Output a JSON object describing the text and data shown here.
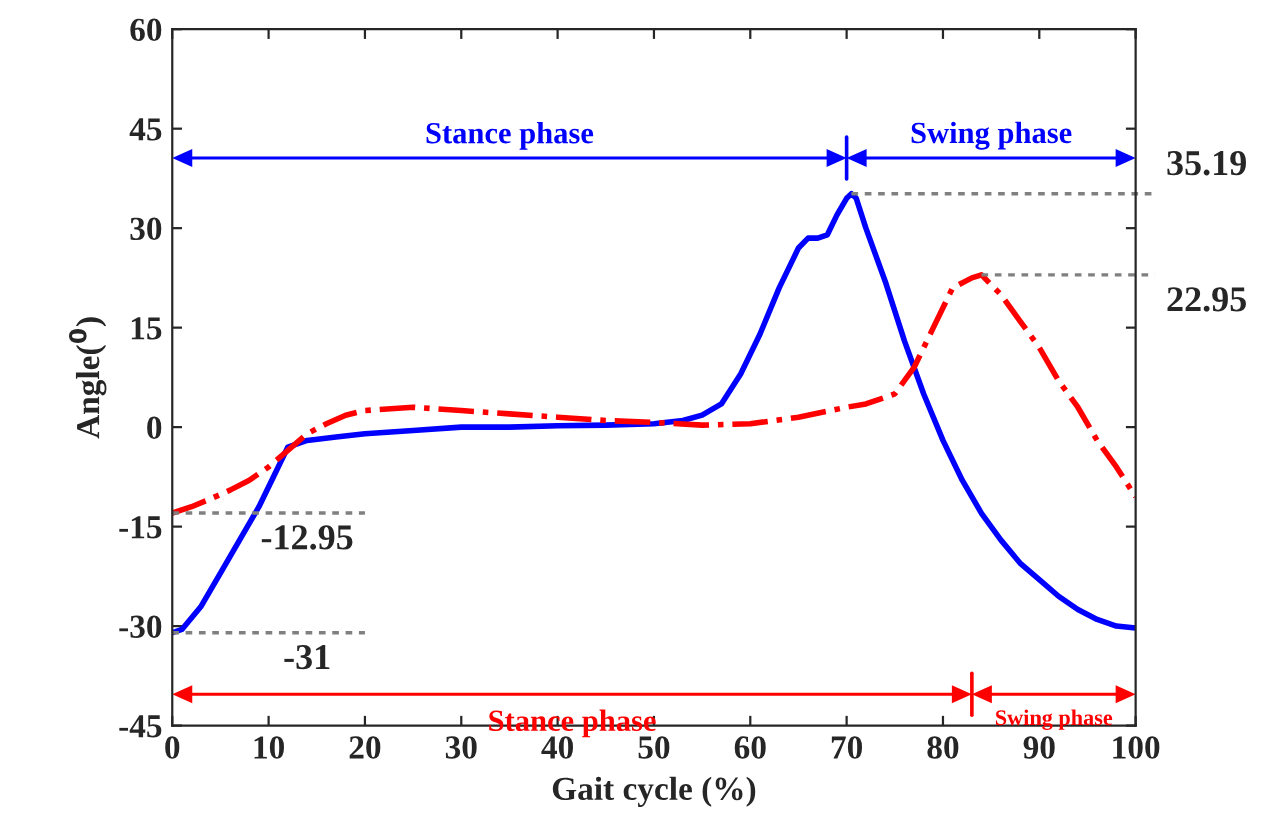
{
  "chart_data": {
    "type": "line",
    "xlabel": "Gait cycle (%)",
    "ylabel": "Angle($^{0}$)",
    "xlim": [
      0,
      100
    ],
    "ylim": [
      -45,
      60
    ],
    "xticks": [
      0,
      10,
      20,
      30,
      40,
      50,
      60,
      70,
      80,
      90,
      100
    ],
    "yticks": [
      -45,
      -30,
      -15,
      0,
      15,
      30,
      45,
      60
    ],
    "grid": false,
    "legend": false,
    "series": [
      {
        "color": "#0000ff",
        "line_style": "solid",
        "x": [
          0,
          1,
          3,
          5,
          7,
          9,
          11,
          12,
          14,
          17,
          20,
          25,
          30,
          35,
          40,
          45,
          50,
          53,
          55,
          57,
          59,
          61,
          63,
          65,
          66,
          67,
          68,
          69,
          70,
          70.5,
          71,
          72,
          74,
          76,
          78,
          80,
          82,
          84,
          86,
          88,
          90,
          92,
          94,
          96,
          98,
          100
        ],
        "values": [
          -31,
          -30.5,
          -27,
          -22,
          -17,
          -12,
          -6,
          -3,
          -2,
          -1.5,
          -1,
          -0.5,
          0,
          0,
          0.2,
          0.3,
          0.5,
          1,
          1.8,
          3.5,
          8,
          14,
          21,
          27,
          28.5,
          28.5,
          29,
          32,
          34.5,
          35.19,
          34.5,
          30,
          22,
          13,
          5,
          -2,
          -8,
          -13,
          -17,
          -20.5,
          -23,
          -25.5,
          -27.5,
          -29,
          -30,
          -30.3
        ]
      },
      {
        "color": "#ff0000",
        "line_style": "dashdot",
        "x": [
          0,
          2,
          4,
          6,
          8,
          10,
          12,
          14,
          16,
          18,
          20,
          25,
          30,
          35,
          40,
          45,
          50,
          55,
          60,
          65,
          70,
          72,
          75,
          77,
          79,
          81,
          83,
          84,
          86,
          88,
          90,
          92,
          94,
          96,
          98,
          100
        ],
        "values": [
          -12.95,
          -12,
          -10.8,
          -9.5,
          -8,
          -6,
          -3.5,
          -1,
          0.5,
          1.8,
          2.5,
          3,
          2.5,
          2,
          1.5,
          1,
          0.7,
          0.3,
          0.5,
          1.5,
          3,
          3.5,
          5,
          9,
          15,
          21,
          22.5,
          22.95,
          20,
          16,
          12,
          7,
          3,
          -2,
          -6,
          -10.5
        ]
      }
    ],
    "annotations": [
      {
        "text": "35.19",
        "x": 70.5,
        "y": 35.19
      },
      {
        "text": "22.95",
        "x": 84,
        "y": 22.95
      },
      {
        "text": "-12.95",
        "x": 0,
        "y": -12.95
      },
      {
        "text": "-31",
        "x": 0,
        "y": -31
      },
      "Stance phase",
      "Swing phase",
      "Stance phase",
      "Swing phase"
    ]
  }
}
